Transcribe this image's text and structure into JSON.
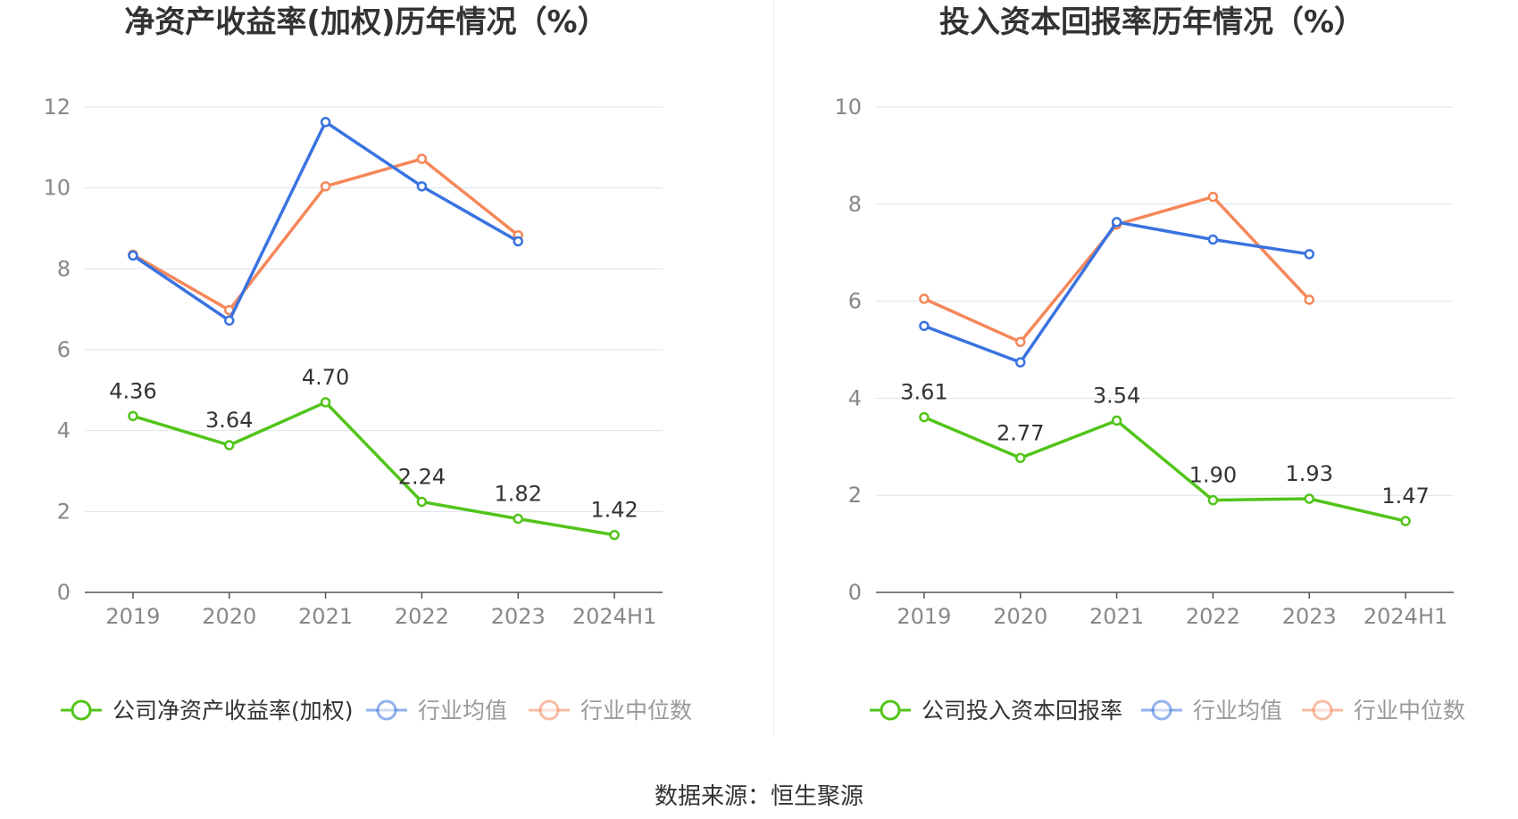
{
  "footer": {
    "source": "数据来源：恒生聚源"
  },
  "colors": {
    "company": "#52c41a",
    "average": "#3a73e0",
    "median": "#f5875a",
    "grid": "#dde3ef",
    "axis": "#555555",
    "tick": "#888888"
  },
  "chart_data": [
    {
      "type": "line",
      "title": "净资产收益率(加权)历年情况（%）",
      "categories": [
        "2019",
        "2020",
        "2021",
        "2022",
        "2023",
        "2024H1"
      ],
      "ylim": [
        0,
        12
      ],
      "yticks": [
        0,
        2,
        4,
        6,
        8,
        10,
        12
      ],
      "grid": true,
      "legend_position": "bottom",
      "series": [
        {
          "name": "公司净资产收益率(加权)",
          "values": [
            4.36,
            3.64,
            4.7,
            2.24,
            1.82,
            1.42
          ],
          "labels": [
            "4.36",
            "3.64",
            "4.70",
            "2.24",
            "1.82",
            "1.42"
          ]
        },
        {
          "name": "行业均值",
          "values": [
            8.33,
            6.72,
            11.63,
            10.04,
            8.68,
            null
          ]
        },
        {
          "name": "行业中位数",
          "values": [
            8.35,
            6.98,
            10.04,
            10.72,
            8.83,
            null
          ]
        }
      ]
    },
    {
      "type": "line",
      "title": "投入资本回报率历年情况（%）",
      "categories": [
        "2019",
        "2020",
        "2021",
        "2022",
        "2023",
        "2024H1"
      ],
      "ylim": [
        0,
        10
      ],
      "yticks": [
        0,
        2,
        4,
        6,
        8,
        10
      ],
      "grid": true,
      "legend_position": "bottom",
      "series": [
        {
          "name": "公司投入资本回报率",
          "values": [
            3.61,
            2.77,
            3.54,
            1.9,
            1.93,
            1.47
          ],
          "labels": [
            "3.61",
            "2.77",
            "3.54",
            "1.90",
            "1.93",
            "1.47"
          ]
        },
        {
          "name": "行业均值",
          "values": [
            5.49,
            4.74,
            7.63,
            7.27,
            6.97,
            null
          ]
        },
        {
          "name": "行业中位数",
          "values": [
            6.05,
            5.16,
            7.58,
            8.15,
            6.03,
            null
          ]
        }
      ]
    }
  ]
}
